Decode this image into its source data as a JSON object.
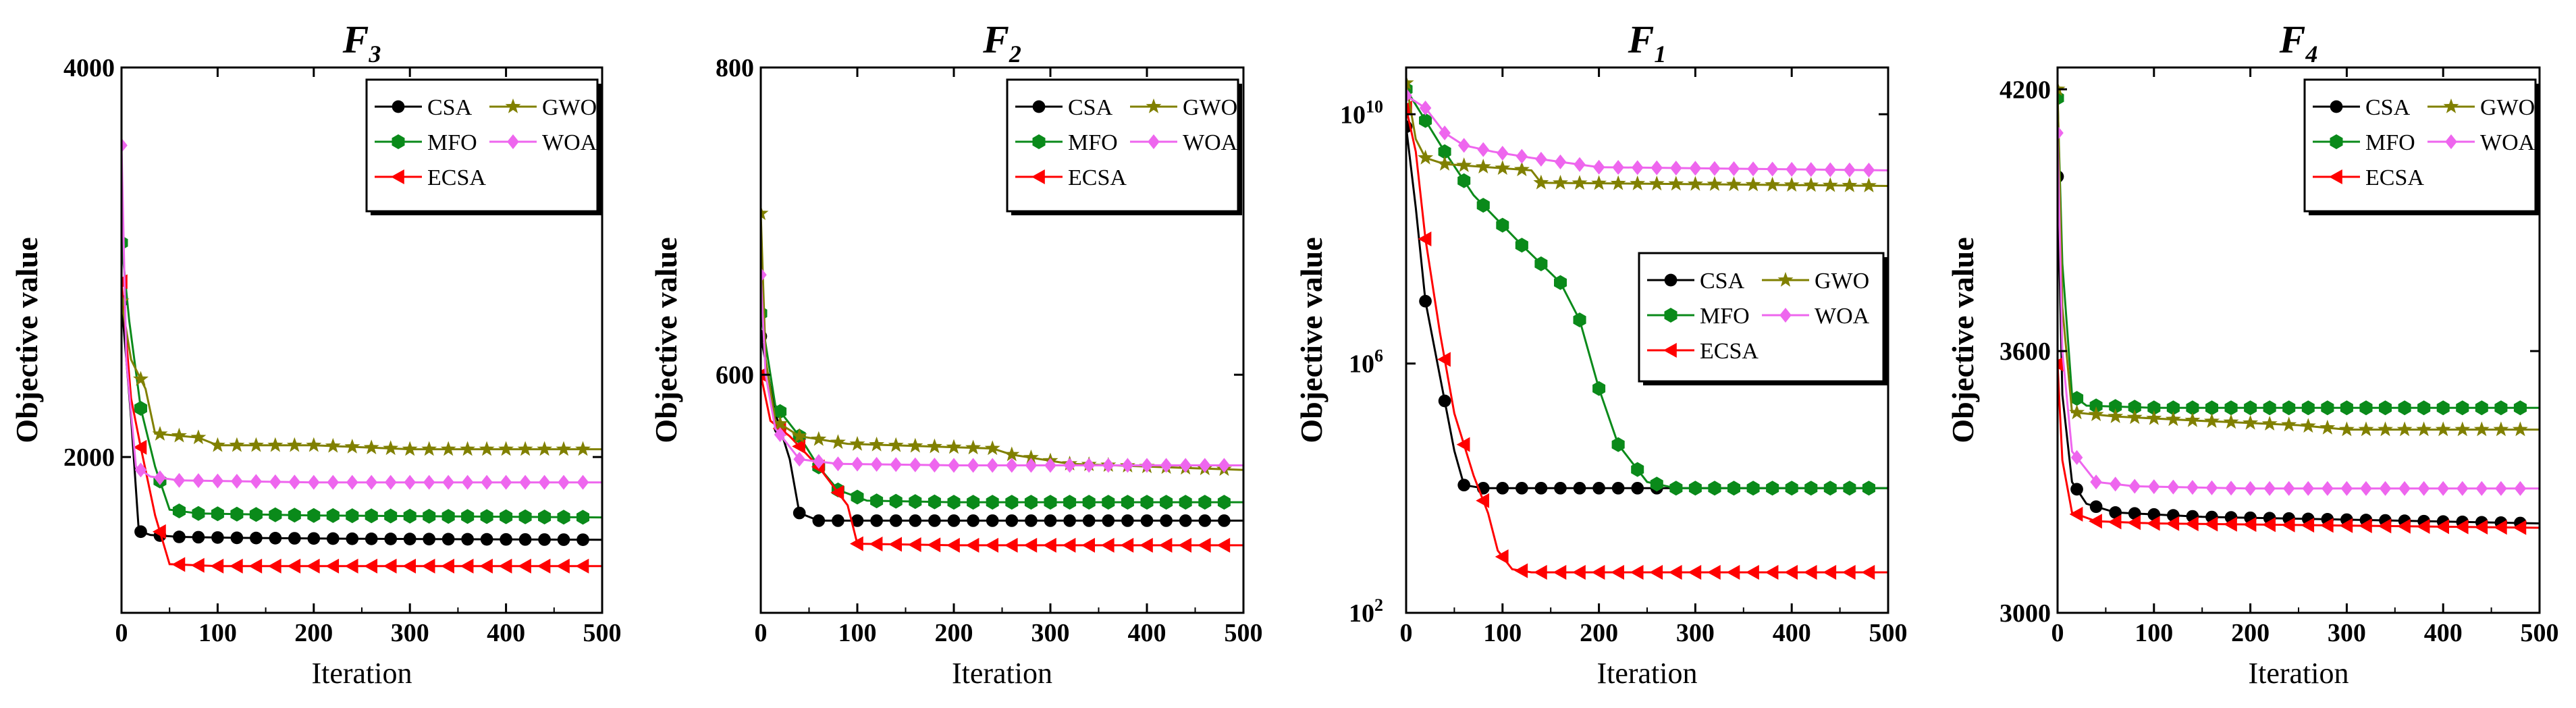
{
  "chart_data": [
    {
      "type": "line",
      "title": "F",
      "title_sub": "3",
      "xlabel": "Iteration",
      "ylabel": "Objective value",
      "yscale": "linear",
      "xlim": [
        0,
        500
      ],
      "ylim": [
        1200,
        4000
      ],
      "xticks": [
        "0",
        "100",
        "200",
        "300",
        "400",
        "500"
      ],
      "yticks": [
        {
          "v": 2000,
          "label": "2000"
        },
        {
          "v": 4000,
          "label": "4000"
        }
      ],
      "legend_pos": "top-right",
      "series": [
        {
          "name": "CSA",
          "color": "#000000",
          "marker": "circle",
          "points": [
            [
              0,
              2800
            ],
            [
              10,
              2200
            ],
            [
              18,
              1620
            ],
            [
              30,
              1600
            ],
            [
              60,
              1590
            ],
            [
              120,
              1585
            ],
            [
              250,
              1580
            ],
            [
              500,
              1575
            ]
          ]
        },
        {
          "name": "MFO",
          "color": "#0a8a1a",
          "marker": "hexagon",
          "points": [
            [
              0,
              3100
            ],
            [
              8,
              2700
            ],
            [
              20,
              2250
            ],
            [
              35,
              1950
            ],
            [
              50,
              1730
            ],
            [
              80,
              1710
            ],
            [
              200,
              1700
            ],
            [
              500,
              1690
            ]
          ]
        },
        {
          "name": "ECSA",
          "color": "#ff0000",
          "marker": "triangle",
          "points": [
            [
              0,
              2900
            ],
            [
              10,
              2300
            ],
            [
              20,
              2050
            ],
            [
              35,
              1700
            ],
            [
              50,
              1450
            ],
            [
              100,
              1440
            ],
            [
              300,
              1440
            ],
            [
              500,
              1440
            ]
          ]
        },
        {
          "name": "GWO",
          "color": "#808000",
          "marker": "star",
          "points": [
            [
              0,
              2800
            ],
            [
              10,
              2500
            ],
            [
              25,
              2350
            ],
            [
              35,
              2120
            ],
            [
              80,
              2100
            ],
            [
              100,
              2060
            ],
            [
              200,
              2060
            ],
            [
              300,
              2040
            ],
            [
              500,
              2040
            ]
          ]
        },
        {
          "name": "WOA",
          "color": "#ee66ee",
          "marker": "diamond",
          "points": [
            [
              0,
              3600
            ],
            [
              5,
              2500
            ],
            [
              15,
              1950
            ],
            [
              30,
              1900
            ],
            [
              60,
              1880
            ],
            [
              200,
              1870
            ],
            [
              500,
              1870
            ]
          ]
        }
      ]
    },
    {
      "type": "line",
      "title": "F",
      "title_sub": "2",
      "xlabel": "Iteration",
      "ylabel": "Objective value",
      "yscale": "linear",
      "xlim": [
        0,
        500
      ],
      "ylim": [
        445,
        800
      ],
      "xticks": [
        "0",
        "100",
        "200",
        "300",
        "400",
        "500"
      ],
      "yticks": [
        {
          "v": 600,
          "label": "600"
        },
        {
          "v": 800,
          "label": "800"
        }
      ],
      "legend_pos": "top-right",
      "series": [
        {
          "name": "CSA",
          "color": "#000000",
          "marker": "circle",
          "points": [
            [
              0,
              625
            ],
            [
              15,
              575
            ],
            [
              30,
              545
            ],
            [
              40,
              510
            ],
            [
              60,
              505
            ],
            [
              150,
              505
            ],
            [
              500,
              505
            ]
          ]
        },
        {
          "name": "MFO",
          "color": "#0a8a1a",
          "marker": "hexagon",
          "points": [
            [
              0,
              640
            ],
            [
              15,
              580
            ],
            [
              40,
              560
            ],
            [
              60,
              540
            ],
            [
              80,
              525
            ],
            [
              110,
              518
            ],
            [
              200,
              517
            ],
            [
              500,
              517
            ]
          ]
        },
        {
          "name": "ECSA",
          "color": "#ff0000",
          "marker": "triangle",
          "points": [
            [
              0,
              600
            ],
            [
              10,
              570
            ],
            [
              30,
              560
            ],
            [
              60,
              540
            ],
            [
              90,
              515
            ],
            [
              100,
              490
            ],
            [
              200,
              489
            ],
            [
              500,
              489
            ]
          ]
        },
        {
          "name": "GWO",
          "color": "#808000",
          "marker": "star",
          "points": [
            [
              0,
              705
            ],
            [
              5,
              610
            ],
            [
              15,
              570
            ],
            [
              40,
              560
            ],
            [
              90,
              555
            ],
            [
              240,
              552
            ],
            [
              260,
              548
            ],
            [
              320,
              542
            ],
            [
              500,
              538
            ]
          ]
        },
        {
          "name": "WOA",
          "color": "#ee66ee",
          "marker": "diamond",
          "points": [
            [
              0,
              665
            ],
            [
              5,
              600
            ],
            [
              15,
              565
            ],
            [
              40,
              545
            ],
            [
              80,
              542
            ],
            [
              200,
              541
            ],
            [
              500,
              541
            ]
          ]
        }
      ]
    },
    {
      "type": "line",
      "title": "F",
      "title_sub": "1",
      "xlabel": "Iteration",
      "ylabel": "Objective value",
      "yscale": "log",
      "xlim": [
        0,
        500
      ],
      "ylim": [
        2,
        10.75
      ],
      "xticks": [
        "0",
        "100",
        "200",
        "300",
        "400",
        "500"
      ],
      "yticks": [
        {
          "v": 2,
          "label": "10",
          "sup": "2"
        },
        {
          "v": 6,
          "label": "10",
          "sup": "6"
        },
        {
          "v": 10,
          "label": "10",
          "sup": "10"
        }
      ],
      "legend_pos": "center-right",
      "series": [
        {
          "name": "CSA",
          "color": "#000000",
          "marker": "circle",
          "points": [
            [
              0,
              9.8
            ],
            [
              10,
              8.5
            ],
            [
              20,
              7.0
            ],
            [
              35,
              5.8
            ],
            [
              50,
              4.6
            ],
            [
              60,
              4.05
            ],
            [
              80,
              4.0
            ],
            [
              200,
              4.0
            ],
            [
              500,
              4.0
            ]
          ]
        },
        {
          "name": "MFO",
          "color": "#0a8a1a",
          "marker": "hexagon",
          "points": [
            [
              0,
              10.4
            ],
            [
              20,
              9.9
            ],
            [
              40,
              9.4
            ],
            [
              70,
              8.7
            ],
            [
              120,
              7.9
            ],
            [
              160,
              7.3
            ],
            [
              180,
              6.7
            ],
            [
              200,
              5.6
            ],
            [
              220,
              4.7
            ],
            [
              250,
              4.1
            ],
            [
              280,
              4.0
            ],
            [
              500,
              4.0
            ]
          ]
        },
        {
          "name": "ECSA",
          "color": "#ff0000",
          "marker": "triangle",
          "points": [
            [
              0,
              10.1
            ],
            [
              10,
              9.4
            ],
            [
              20,
              8.0
            ],
            [
              35,
              6.5
            ],
            [
              50,
              5.2
            ],
            [
              70,
              4.2
            ],
            [
              85,
              3.6
            ],
            [
              95,
              3.0
            ],
            [
              110,
              2.7
            ],
            [
              130,
              2.65
            ],
            [
              200,
              2.65
            ],
            [
              500,
              2.65
            ]
          ]
        },
        {
          "name": "GWO",
          "color": "#808000",
          "marker": "star",
          "points": [
            [
              0,
              10.5
            ],
            [
              10,
              9.6
            ],
            [
              20,
              9.3
            ],
            [
              40,
              9.2
            ],
            [
              130,
              9.1
            ],
            [
              140,
              8.9
            ],
            [
              500,
              8.85
            ]
          ]
        },
        {
          "name": "WOA",
          "color": "#ee66ee",
          "marker": "diamond",
          "points": [
            [
              0,
              10.3
            ],
            [
              20,
              10.1
            ],
            [
              40,
              9.7
            ],
            [
              60,
              9.5
            ],
            [
              90,
              9.4
            ],
            [
              130,
              9.3
            ],
            [
              200,
              9.15
            ],
            [
              500,
              9.1
            ]
          ]
        }
      ]
    },
    {
      "type": "line",
      "title": "F",
      "title_sub": "4",
      "xlabel": "Iteration",
      "ylabel": "Objective value",
      "yscale": "linear",
      "xlim": [
        0,
        500
      ],
      "ylim": [
        3000,
        4250
      ],
      "xticks": [
        "0",
        "100",
        "200",
        "300",
        "400",
        "500"
      ],
      "yticks": [
        {
          "v": 3000,
          "label": "3000"
        },
        {
          "v": 3600,
          "label": "3600"
        },
        {
          "v": 4200,
          "label": "4200"
        }
      ],
      "legend_pos": "top-right",
      "series": [
        {
          "name": "CSA",
          "color": "#000000",
          "marker": "circle",
          "points": [
            [
              0,
              4000
            ],
            [
              5,
              3500
            ],
            [
              15,
              3300
            ],
            [
              30,
              3250
            ],
            [
              60,
              3230
            ],
            [
              150,
              3220
            ],
            [
              500,
              3205
            ]
          ]
        },
        {
          "name": "MFO",
          "color": "#0a8a1a",
          "marker": "hexagon",
          "points": [
            [
              0,
              4180
            ],
            [
              5,
              3800
            ],
            [
              15,
              3500
            ],
            [
              30,
              3475
            ],
            [
              100,
              3470
            ],
            [
              500,
              3470
            ]
          ]
        },
        {
          "name": "ECSA",
          "color": "#ff0000",
          "marker": "triangle",
          "points": [
            [
              0,
              3570
            ],
            [
              5,
              3350
            ],
            [
              15,
              3230
            ],
            [
              40,
              3210
            ],
            [
              100,
              3205
            ],
            [
              300,
              3200
            ],
            [
              500,
              3195
            ]
          ]
        },
        {
          "name": "GWO",
          "color": "#808000",
          "marker": "star",
          "points": [
            [
              0,
              4200
            ],
            [
              5,
              3700
            ],
            [
              15,
              3460
            ],
            [
              60,
              3450
            ],
            [
              150,
              3440
            ],
            [
              250,
              3430
            ],
            [
              300,
              3420
            ],
            [
              500,
              3420
            ]
          ]
        },
        {
          "name": "WOA",
          "color": "#ee66ee",
          "marker": "diamond",
          "points": [
            [
              0,
              4100
            ],
            [
              5,
              3600
            ],
            [
              15,
              3370
            ],
            [
              40,
              3300
            ],
            [
              80,
              3290
            ],
            [
              200,
              3285
            ],
            [
              500,
              3285
            ]
          ]
        }
      ]
    }
  ]
}
